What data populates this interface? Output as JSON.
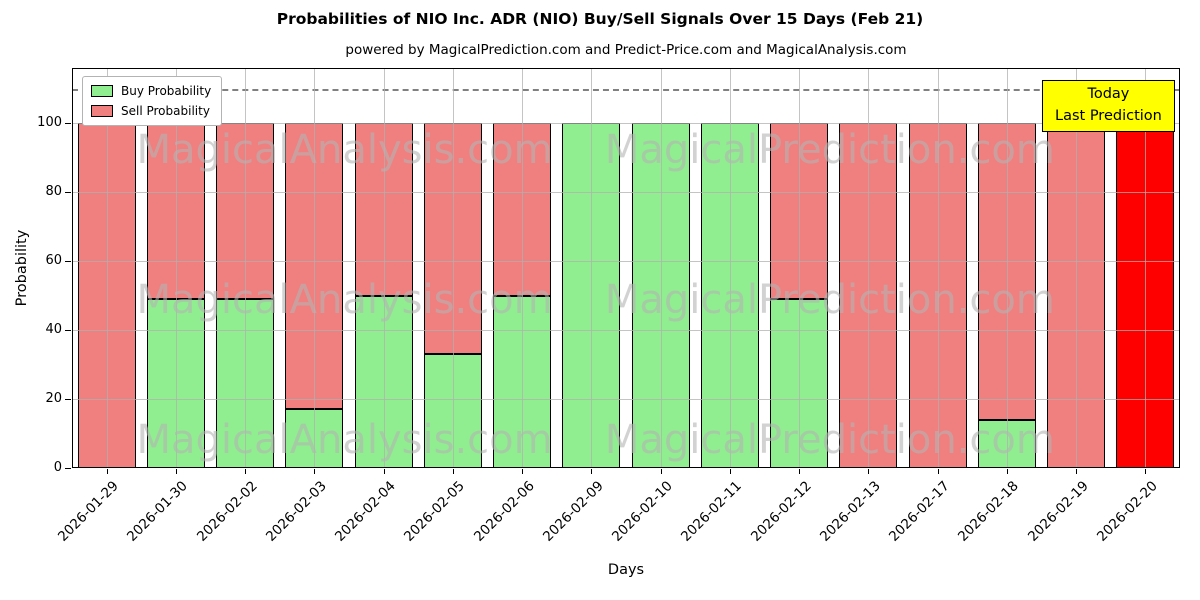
{
  "legend": {
    "items": [
      {
        "label": "Buy Probability",
        "color": "#90ee90"
      },
      {
        "label": "Sell Probability",
        "color": "#f08080"
      }
    ]
  },
  "today_box": {
    "line1": "Today",
    "line2": "Last Prediction",
    "bg": "#ffff00"
  },
  "watermarks": {
    "left_text": "MagicalAnalysis.com",
    "right_text": "MagicalPrediction.com"
  },
  "colors": {
    "buy": "#90ee90",
    "sell": "#f08080",
    "today_bar": "#ff0000",
    "grid": "#b0b0b0",
    "dashed_line": "#808080",
    "axis": "#000000",
    "legend_border": "#b3b3b3",
    "today_box_bg": "#ffff00",
    "watermark": "rgba(180,180,180,0.6)"
  },
  "chart_data": {
    "type": "bar",
    "stacked": true,
    "title": "Probabilities of NIO Inc. ADR (NIO) Buy/Sell Signals Over 15 Days (Feb 21)",
    "subtitle": "powered by MagicalPrediction.com and Predict-Price.com and MagicalAnalysis.com",
    "xlabel": "Days",
    "ylabel": "Probability",
    "ylim": [
      0,
      116
    ],
    "yticks": [
      0,
      20,
      40,
      60,
      80,
      100
    ],
    "grid": true,
    "legend_position": "upper left",
    "dashed_line_y": 110,
    "categories": [
      "2026-01-29",
      "2026-01-30",
      "2026-02-02",
      "2026-02-03",
      "2026-02-04",
      "2026-02-05",
      "2026-02-06",
      "2026-02-09",
      "2026-02-10",
      "2026-02-11",
      "2026-02-12",
      "2026-02-13",
      "2026-02-17",
      "2026-02-18",
      "2026-02-19",
      "2026-02-20"
    ],
    "series": [
      {
        "name": "Buy Probability",
        "color": "#90ee90",
        "values": [
          0,
          49,
          49,
          17,
          50,
          33,
          50,
          100,
          100,
          100,
          49,
          0,
          0,
          14,
          0,
          0
        ]
      },
      {
        "name": "Sell Probability",
        "color": "#f08080",
        "values": [
          100,
          51,
          51,
          83,
          50,
          67,
          50,
          0,
          0,
          0,
          51,
          100,
          100,
          86,
          100,
          100
        ]
      }
    ],
    "last_bar": {
      "index": 15,
      "sell_color": "#ff0000",
      "annotation": "Today Last Prediction"
    }
  }
}
